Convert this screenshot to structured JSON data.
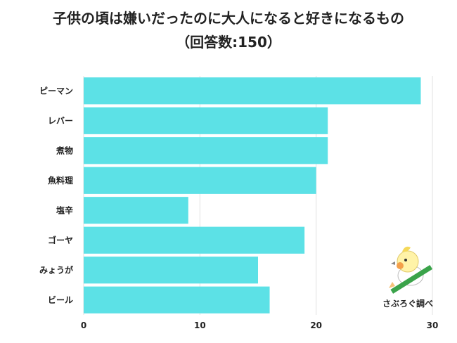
{
  "chart_data": {
    "type": "bar",
    "orientation": "horizontal",
    "title": "子供の頃は嫌いだったのに大人になると好きになるもの",
    "subtitle": "（回答数:150）",
    "categories": [
      "ピーマン",
      "レバー",
      "煮物",
      "魚料理",
      "塩辛",
      "ゴーヤ",
      "みょうが",
      "ビール"
    ],
    "values": [
      29,
      21,
      21,
      20,
      9,
      19,
      15,
      16
    ],
    "xlim": [
      0,
      30
    ],
    "xticks": [
      0,
      10,
      20,
      30
    ],
    "grid": true,
    "bar_color": "#5ce1e6"
  },
  "logo": {
    "text": "さぶろぐ調べ"
  }
}
